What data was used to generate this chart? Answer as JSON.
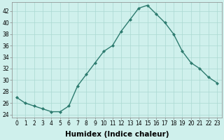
{
  "x": [
    0,
    1,
    2,
    3,
    4,
    5,
    6,
    7,
    8,
    9,
    10,
    11,
    12,
    13,
    14,
    15,
    16,
    17,
    18,
    19,
    20,
    21,
    22,
    23
  ],
  "y": [
    27,
    26,
    25.5,
    25,
    24.5,
    24.5,
    25.5,
    29,
    31,
    33,
    35,
    36,
    38.5,
    40.5,
    42.5,
    43,
    41.5,
    40,
    38,
    35,
    33,
    32,
    30.5,
    29.5
  ],
  "line_color": "#2d7b6f",
  "marker": "D",
  "markersize": 2.0,
  "linewidth": 1.0,
  "bg_color": "#cff0ec",
  "grid_color": "#aad8d2",
  "xlabel": "Humidex (Indice chaleur)",
  "ylabel": "",
  "xlim": [
    -0.5,
    23.5
  ],
  "ylim": [
    23.5,
    43.5
  ],
  "yticks": [
    24,
    26,
    28,
    30,
    32,
    34,
    36,
    38,
    40,
    42
  ],
  "xticks": [
    0,
    1,
    2,
    3,
    4,
    5,
    6,
    7,
    8,
    9,
    10,
    11,
    12,
    13,
    14,
    15,
    16,
    17,
    18,
    19,
    20,
    21,
    22,
    23
  ],
  "tick_fontsize": 5.5,
  "xlabel_fontsize": 7.5,
  "xlabel_fontweight": "bold"
}
